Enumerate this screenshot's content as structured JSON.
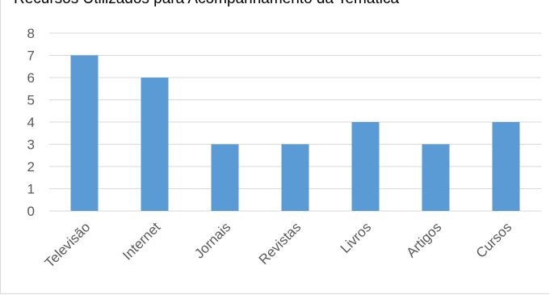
{
  "chart_data": {
    "type": "bar",
    "title": "Recursos Utilizados para Acompanhamento da Temática",
    "categories": [
      "Televisão",
      "Internet",
      "Jornais",
      "Revistas",
      "Livros",
      "Artigos",
      "Cursos"
    ],
    "values": [
      7,
      6,
      3,
      3,
      4,
      3,
      4
    ],
    "ylim": [
      0,
      8
    ],
    "yticks": [
      "0",
      "1",
      "2",
      "3",
      "4",
      "5",
      "6",
      "7",
      "8"
    ],
    "grid": true,
    "bar_color": "#5b9bd5",
    "grid_color": "#d9d9d9"
  }
}
